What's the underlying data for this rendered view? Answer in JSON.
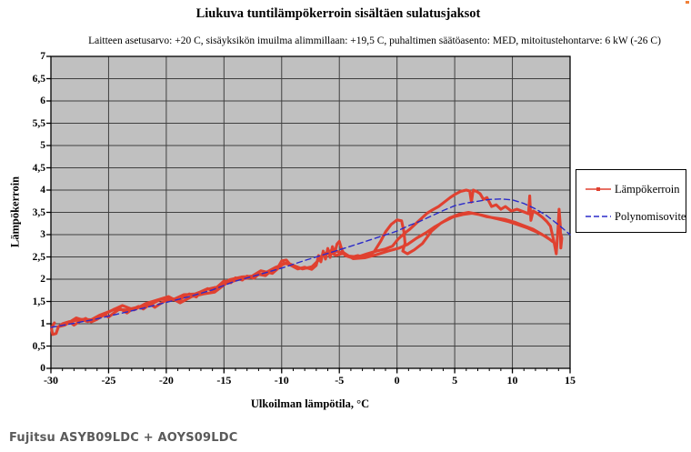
{
  "header": {
    "title": "Liukuva tuntilämpökerroin sisältäen sulatusjaksot",
    "subtitle": "Laitteen asetusarvo: +20  C,  sisäyksikön imuilma alimmillaan: +19,5  C, puhaltimen säätöasento: MED, mitoitustehontarve: 6 kW (-26  C)"
  },
  "caption": "Fujitsu ASYB09LDC + AOYS09LDC",
  "legend": {
    "items": [
      {
        "label": "Lämpökerroin",
        "color": "#e04130",
        "style": "solid-with-marker"
      },
      {
        "label": "Polynomisovite",
        "color": "#2b2bc8",
        "style": "dashed"
      }
    ]
  },
  "chart_data": {
    "type": "line",
    "title": "Liukuva tuntilämpökerroin sisältäen sulatusjaksot",
    "xlabel": "Ulkoilman lämpötila, °C",
    "ylabel": "Lämpökerroin",
    "xlim": [
      -30,
      15
    ],
    "ylim": [
      0,
      7
    ],
    "x_ticks": [
      -30,
      -25,
      -20,
      -15,
      -10,
      -5,
      0,
      5,
      10,
      15
    ],
    "x_tick_labels": [
      "-30",
      "-25",
      "-20",
      "-15",
      "-10",
      "-5",
      "0",
      "5",
      "10",
      "15"
    ],
    "x_minor_step": 1,
    "y_ticks": [
      0,
      0.5,
      1,
      1.5,
      2,
      2.5,
      3,
      3.5,
      4,
      4.5,
      5,
      5.5,
      6,
      6.5,
      7
    ],
    "y_tick_labels": [
      "0",
      "0,5",
      "1",
      "1,5",
      "2",
      "2,5",
      "3",
      "3,5",
      "4",
      "4,5",
      "5",
      "5,5",
      "6",
      "6,5",
      "7"
    ],
    "grid": {
      "x_step": 5,
      "y_step": 0.5,
      "color": "#404040"
    },
    "plot_bg": "#c0c0c0",
    "legend_position": "right-outside",
    "series": [
      {
        "name": "Lämpökerroin",
        "color": "#e04130",
        "width": 3.1,
        "dash": "",
        "points": [
          [
            -29.7,
            1.02
          ],
          [
            -29.95,
            0.9
          ],
          [
            -29.85,
            0.76
          ],
          [
            -29.55,
            0.78
          ],
          [
            -29.35,
            0.93
          ],
          [
            -29,
            1.0
          ],
          [
            -28.4,
            1.05
          ],
          [
            -28,
            0.97
          ],
          [
            -27.4,
            1.07
          ],
          [
            -27,
            1.12
          ],
          [
            -26.5,
            1.04
          ],
          [
            -26,
            1.1
          ],
          [
            -25.4,
            1.2
          ],
          [
            -25,
            1.15
          ],
          [
            -24.4,
            1.27
          ],
          [
            -24,
            1.34
          ],
          [
            -23.4,
            1.24
          ],
          [
            -23,
            1.32
          ],
          [
            -22.4,
            1.39
          ],
          [
            -22,
            1.33
          ],
          [
            -21.4,
            1.44
          ],
          [
            -21,
            1.37
          ],
          [
            -20.4,
            1.47
          ],
          [
            -20,
            1.53
          ],
          [
            -19.4,
            1.56
          ],
          [
            -19,
            1.5
          ],
          [
            -18.4,
            1.62
          ],
          [
            -18,
            1.67
          ],
          [
            -17.4,
            1.6
          ],
          [
            -17,
            1.72
          ],
          [
            -16.4,
            1.79
          ],
          [
            -16,
            1.73
          ],
          [
            -15.4,
            1.87
          ],
          [
            -15,
            1.96
          ],
          [
            -14.4,
            1.92
          ],
          [
            -14,
            2.03
          ],
          [
            -13.4,
            1.98
          ],
          [
            -13,
            2.07
          ],
          [
            -12.4,
            2.02
          ],
          [
            -12,
            2.11
          ],
          [
            -11.4,
            2.08
          ],
          [
            -11,
            2.17
          ],
          [
            -10.4,
            2.23
          ],
          [
            -10,
            2.41
          ],
          [
            -9.6,
            2.43
          ],
          [
            -9.2,
            2.31
          ],
          [
            -8.6,
            2.23
          ],
          [
            -8,
            2.27
          ],
          [
            -7.4,
            2.22
          ],
          [
            -7,
            2.31
          ],
          [
            -6.8,
            2.53
          ],
          [
            -6.6,
            2.39
          ],
          [
            -6.4,
            2.63
          ],
          [
            -6.2,
            2.45
          ],
          [
            -6,
            2.69
          ],
          [
            -5.8,
            2.49
          ],
          [
            -5.6,
            2.73
          ],
          [
            -5.4,
            2.59
          ],
          [
            -5.2,
            2.79
          ],
          [
            -5,
            2.85
          ],
          [
            -4.8,
            2.67
          ],
          [
            -4.5,
            2.53
          ],
          [
            -4,
            2.49
          ],
          [
            -3.4,
            2.53
          ],
          [
            -3,
            2.5
          ],
          [
            -2.4,
            2.55
          ],
          [
            -2,
            2.61
          ],
          [
            -1.4,
            2.86
          ],
          [
            -1,
            3.06
          ],
          [
            -0.5,
            3.23
          ],
          [
            0,
            3.33
          ],
          [
            0.4,
            3.31
          ],
          [
            0.6,
            3.06
          ],
          [
            0.7,
            2.81
          ],
          [
            0.5,
            2.63
          ],
          [
            0.9,
            2.57
          ],
          [
            1.5,
            2.66
          ],
          [
            2.2,
            2.8
          ],
          [
            3,
            3.08
          ],
          [
            3.8,
            3.26
          ],
          [
            4.6,
            3.38
          ],
          [
            5.4,
            3.46
          ],
          [
            6.2,
            3.5
          ],
          [
            7,
            3.46
          ],
          [
            7.8,
            3.4
          ],
          [
            8.6,
            3.37
          ],
          [
            9.4,
            3.34
          ],
          [
            10.2,
            3.28
          ],
          [
            11,
            3.2
          ],
          [
            11.8,
            3.12
          ],
          [
            12.6,
            3.0
          ],
          [
            13.2,
            2.9
          ],
          [
            13.5,
            2.84
          ],
          [
            12.9,
            2.96
          ],
          [
            12.1,
            3.06
          ],
          [
            11.3,
            3.15
          ],
          [
            10.5,
            3.22
          ],
          [
            9.7,
            3.29
          ],
          [
            8.9,
            3.34
          ],
          [
            8.1,
            3.39
          ],
          [
            7.3,
            3.44
          ],
          [
            6.5,
            3.48
          ],
          [
            5.7,
            3.45
          ],
          [
            4.9,
            3.4
          ],
          [
            4.1,
            3.3
          ],
          [
            3.3,
            3.18
          ],
          [
            2.5,
            3.04
          ],
          [
            1.7,
            2.92
          ],
          [
            0.9,
            2.78
          ],
          [
            0.2,
            2.7
          ],
          [
            -0.8,
            2.63
          ],
          [
            -1.8,
            2.55
          ],
          [
            -2.8,
            2.48
          ],
          [
            -3.8,
            2.46
          ],
          [
            -4.6,
            2.59
          ],
          [
            -5.3,
            2.53
          ],
          [
            -5.9,
            2.63
          ],
          [
            -6.6,
            2.51
          ],
          [
            -7.2,
            2.29
          ],
          [
            -8.2,
            2.23
          ],
          [
            -9,
            2.31
          ],
          [
            -9.8,
            2.36
          ],
          [
            -10.8,
            2.13
          ],
          [
            -11.8,
            2.19
          ],
          [
            -12.8,
            2.03
          ],
          [
            -13.8,
            1.99
          ],
          [
            -14.8,
            1.91
          ],
          [
            -15.8,
            1.71
          ],
          [
            -16.8,
            1.67
          ],
          [
            -17.8,
            1.61
          ],
          [
            -18.8,
            1.47
          ],
          [
            -19.8,
            1.61
          ],
          [
            -20.8,
            1.53
          ],
          [
            -21.8,
            1.45
          ],
          [
            -22.8,
            1.31
          ],
          [
            -23.8,
            1.41
          ],
          [
            -24.8,
            1.29
          ],
          [
            -25.8,
            1.19
          ],
          [
            -26.8,
            1.05
          ],
          [
            -27.8,
            1.13
          ],
          [
            -28.8,
            0.97
          ],
          [
            -29.4,
            0.93
          ],
          [
            -28.5,
            1.03
          ],
          [
            -27.5,
            1.1
          ],
          [
            -26.5,
            1.09
          ],
          [
            -25.5,
            1.19
          ],
          [
            -24.5,
            1.33
          ],
          [
            -23.5,
            1.31
          ],
          [
            -22.5,
            1.37
          ],
          [
            -21.5,
            1.41
          ],
          [
            -20.5,
            1.55
          ],
          [
            -19.5,
            1.53
          ],
          [
            -18.5,
            1.65
          ],
          [
            -17.5,
            1.67
          ],
          [
            -16.5,
            1.77
          ],
          [
            -15.5,
            1.83
          ],
          [
            -14.5,
            1.99
          ],
          [
            -13.5,
            2.05
          ],
          [
            -12.5,
            2.07
          ],
          [
            -11.5,
            2.13
          ],
          [
            -10.5,
            2.27
          ],
          [
            -9.5,
            2.37
          ],
          [
            -8.5,
            2.25
          ],
          [
            -7.5,
            2.25
          ],
          [
            -6.9,
            2.4
          ],
          [
            -6.3,
            2.56
          ],
          [
            -5.6,
            2.66
          ],
          [
            -4.9,
            2.6
          ],
          [
            -4.2,
            2.52
          ],
          [
            -3.4,
            2.5
          ],
          [
            -2.6,
            2.57
          ],
          [
            -1.8,
            2.63
          ],
          [
            -1,
            2.68
          ],
          [
            -0.4,
            2.74
          ],
          [
            0.1,
            2.9
          ],
          [
            0.6,
            3.02
          ],
          [
            1.1,
            3.12
          ],
          [
            1.6,
            3.24
          ],
          [
            2.1,
            3.36
          ],
          [
            2.6,
            3.48
          ],
          [
            3.1,
            3.56
          ],
          [
            3.6,
            3.63
          ],
          [
            4.1,
            3.73
          ],
          [
            4.6,
            3.83
          ],
          [
            5,
            3.9
          ],
          [
            5.5,
            3.97
          ],
          [
            6,
            4.0
          ],
          [
            6.3,
            3.98
          ],
          [
            6.45,
            3.73
          ],
          [
            6.6,
            4.0
          ],
          [
            6.9,
            3.97
          ],
          [
            7.2,
            3.92
          ],
          [
            7.5,
            3.79
          ],
          [
            7.8,
            3.83
          ],
          [
            8.2,
            3.63
          ],
          [
            8.6,
            3.67
          ],
          [
            9,
            3.57
          ],
          [
            9.4,
            3.63
          ],
          [
            9.9,
            3.53
          ],
          [
            10.4,
            3.57
          ],
          [
            11,
            3.51
          ],
          [
            11.4,
            3.47
          ],
          [
            11.5,
            3.87
          ],
          [
            11.6,
            3.32
          ],
          [
            11.8,
            3.53
          ],
          [
            12.2,
            3.47
          ],
          [
            12.6,
            3.39
          ],
          [
            13,
            3.29
          ],
          [
            13.3,
            3.19
          ],
          [
            13.6,
            2.85
          ],
          [
            13.8,
            2.57
          ],
          [
            13.95,
            3.12
          ],
          [
            14.05,
            3.57
          ],
          [
            14.15,
            3.22
          ],
          [
            14.2,
            2.7
          ],
          [
            14.28,
            2.92
          ],
          [
            14.15,
            3.06
          ]
        ]
      },
      {
        "name": "Polynomisovite",
        "color": "#2b2bc8",
        "width": 1.4,
        "dash": "6 4",
        "points": [
          [
            -30,
            0.92
          ],
          [
            -28,
            1.01
          ],
          [
            -26,
            1.11
          ],
          [
            -24,
            1.23
          ],
          [
            -22,
            1.35
          ],
          [
            -20,
            1.48
          ],
          [
            -18,
            1.61
          ],
          [
            -16,
            1.76
          ],
          [
            -14,
            1.96
          ],
          [
            -12,
            2.1
          ],
          [
            -10,
            2.25
          ],
          [
            -8,
            2.42
          ],
          [
            -6,
            2.58
          ],
          [
            -4,
            2.74
          ],
          [
            -2,
            2.91
          ],
          [
            0,
            3.08
          ],
          [
            1,
            3.2
          ],
          [
            2,
            3.3
          ],
          [
            3,
            3.42
          ],
          [
            4,
            3.54
          ],
          [
            5,
            3.65
          ],
          [
            6,
            3.71
          ],
          [
            7,
            3.75
          ],
          [
            8,
            3.79
          ],
          [
            9,
            3.8
          ],
          [
            10,
            3.78
          ],
          [
            11,
            3.7
          ],
          [
            12,
            3.58
          ],
          [
            13,
            3.42
          ],
          [
            14,
            3.22
          ],
          [
            15,
            3.0
          ]
        ]
      }
    ]
  }
}
